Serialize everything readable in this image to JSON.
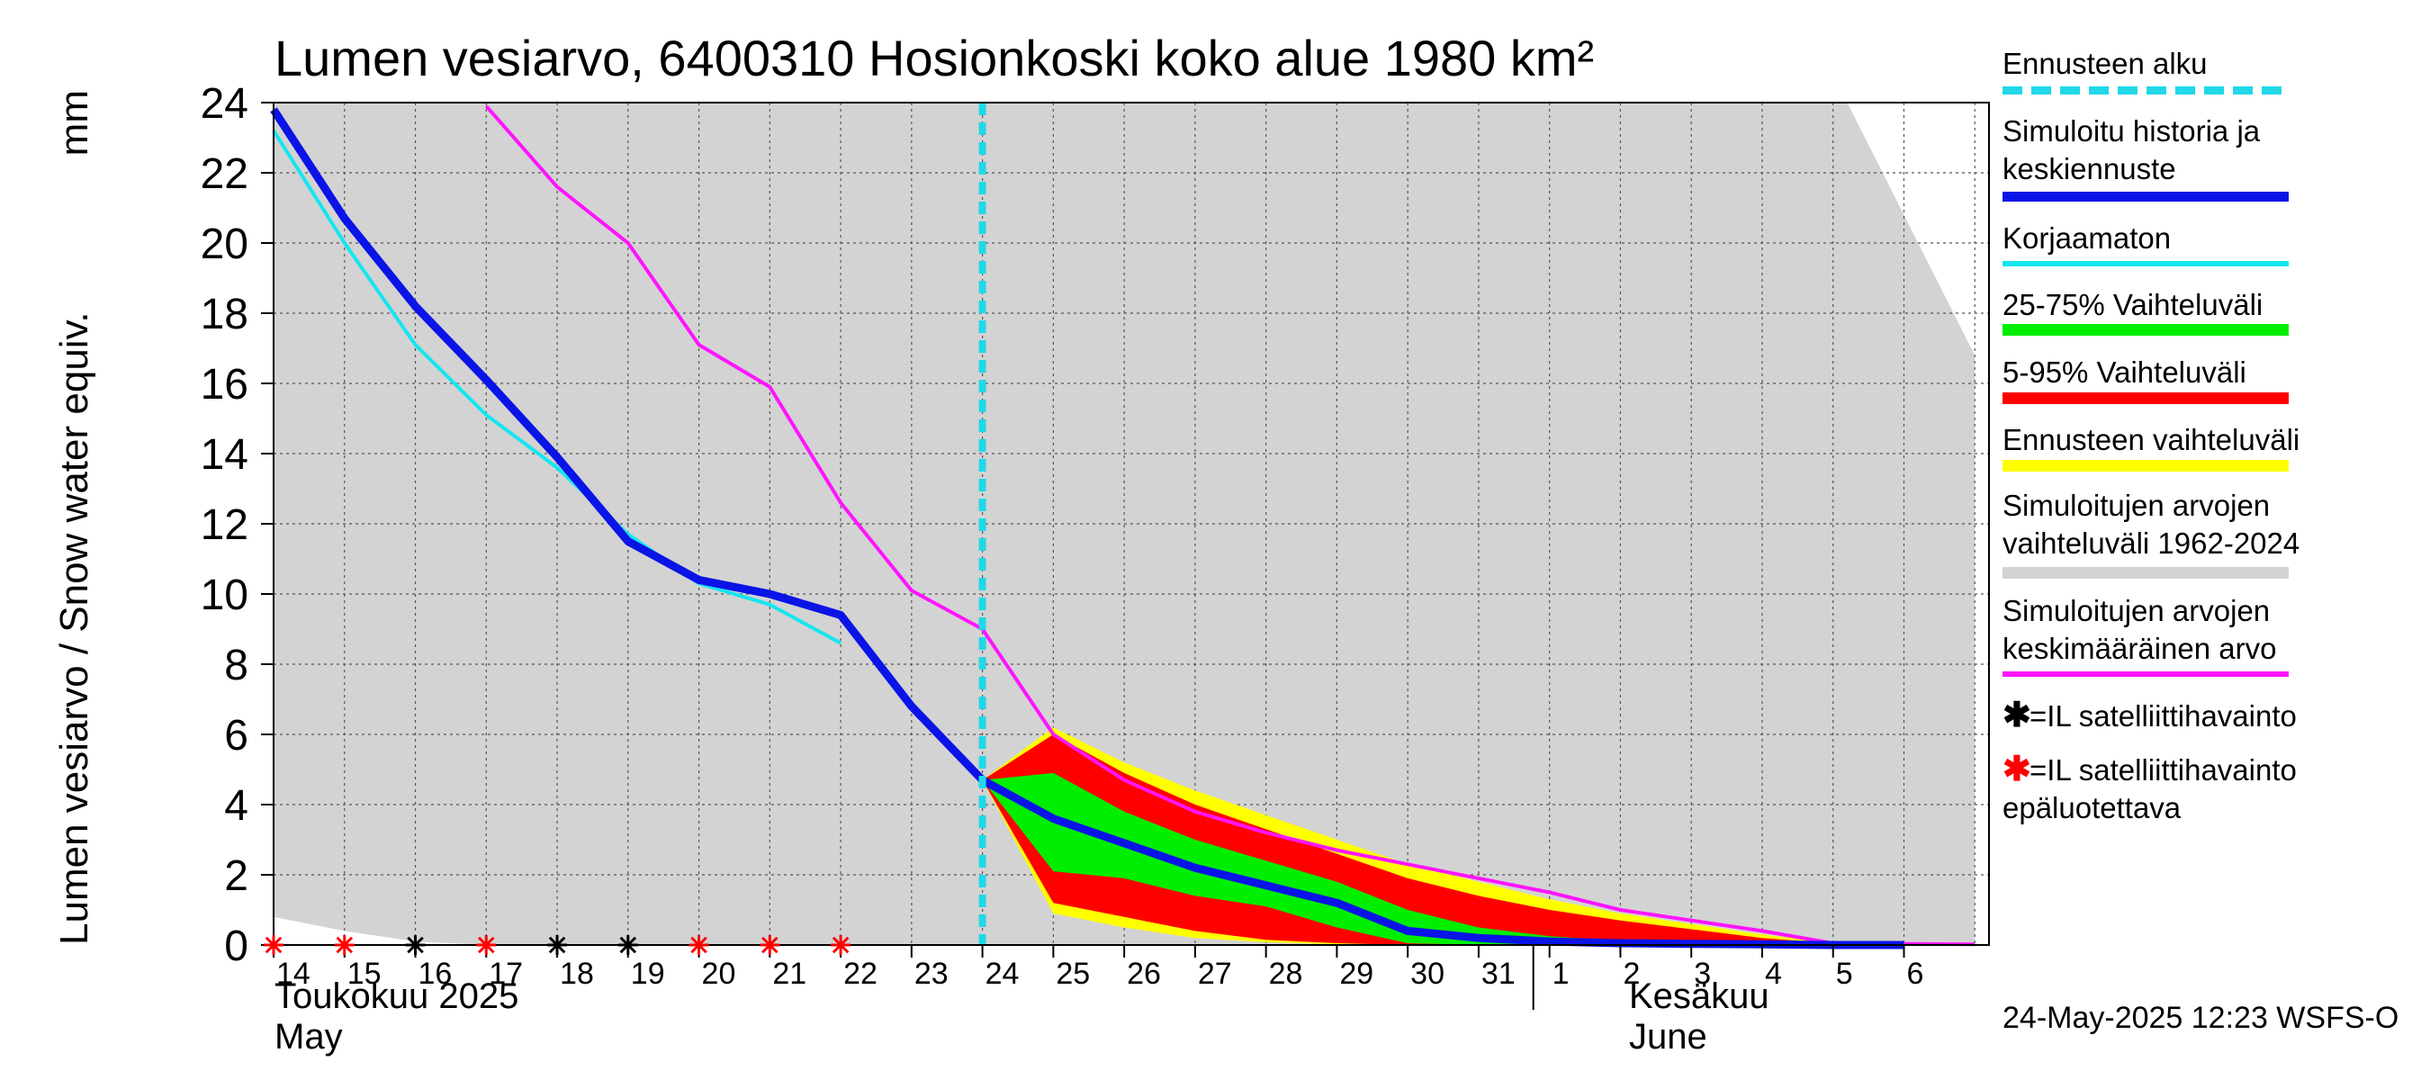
{
  "title": "Lumen vesiarvo, 6400310 Hosionkoski koko alue 1980 km²",
  "ylabel": "Lumen vesiarvo / Snow water equiv.",
  "yunit": "mm",
  "month_may_fi": "Toukokuu  2025",
  "month_may_en": "May",
  "month_june_fi": "Kesäkuu",
  "month_june_en": "June",
  "timestamp": "24-May-2025 12:23 WSFS-O",
  "legend": {
    "forecast_start": "Ennusteen alku",
    "simulated_1": "Simuloitu historia ja",
    "simulated_2": "keskiennuste",
    "uncorrected": "Korjaamaton",
    "range_25_75": "25-75% Vaihteluväli",
    "range_5_95": "5-95% Vaihteluväli",
    "forecast_range": "Ennusteen vaihteluväli",
    "hist_range_1": "Simuloitujen arvojen",
    "hist_range_2": "vaihteluväli 1962-2024",
    "hist_mean_1": "Simuloitujen arvojen",
    "hist_mean_2": "keskimääräinen arvo",
    "sat_1": "=IL satelliittihavainto",
    "sat_unrel_1": "=IL satelliittihavainto",
    "sat_unrel_2": "epäluotettava"
  },
  "colors": {
    "simulated": "#0a14e6",
    "uncorrected": "#14e6f0",
    "range_25_75": "#00ee00",
    "range_5_95": "#ff0000",
    "forecast_range": "#ffff00",
    "hist_range": "#d3d3d3",
    "hist_mean": "#ff14ff",
    "forecast_start": "#20d8e8",
    "sat_ok": "#000000",
    "sat_bad": "#ff0000"
  },
  "chart_data": {
    "type": "line",
    "x_ticks": [
      "14",
      "15",
      "16",
      "17",
      "18",
      "19",
      "20",
      "21",
      "22",
      "23",
      "24",
      "25",
      "26",
      "27",
      "28",
      "29",
      "30",
      "31",
      "1",
      "2",
      "3",
      "4",
      "5",
      "6"
    ],
    "y_ticks": [
      0,
      2,
      4,
      6,
      8,
      10,
      12,
      14,
      16,
      18,
      20,
      22,
      24
    ],
    "ylim": [
      0,
      24
    ],
    "forecast_start_x": 24,
    "series": [
      {
        "name": "Simuloitu historia ja keskiennuste",
        "x": [
          14,
          15,
          16,
          17,
          18,
          19,
          20,
          21,
          22,
          23,
          24,
          25,
          26,
          27,
          28,
          29,
          30,
          31,
          32,
          33,
          34,
          35,
          36,
          37
        ],
        "values": [
          23.8,
          20.7,
          18.2,
          16.1,
          13.9,
          11.5,
          10.4,
          10.0,
          9.4,
          6.8,
          4.7,
          3.6,
          2.9,
          2.2,
          1.7,
          1.2,
          0.4,
          0.2,
          0.1,
          0.05,
          0.03,
          0.02,
          0.0,
          0.0
        ]
      },
      {
        "name": "Korjaamaton",
        "x": [
          14,
          15,
          16,
          17,
          18,
          19,
          20,
          21,
          22
        ],
        "values": [
          23.2,
          20.0,
          17.1,
          15.1,
          13.6,
          11.7,
          10.3,
          9.7,
          8.6
        ]
      },
      {
        "name": "Simuloitujen arvojen keskimääräinen arvo",
        "x": [
          17,
          18,
          19,
          20,
          21,
          22,
          23,
          24,
          25,
          26,
          27,
          28,
          29,
          30,
          31,
          32,
          33,
          34,
          35,
          36,
          37,
          38
        ],
        "values": [
          23.9,
          21.6,
          20.0,
          17.1,
          15.9,
          12.6,
          10.1,
          9.0,
          6.0,
          4.7,
          3.8,
          3.2,
          2.7,
          2.3,
          1.9,
          1.5,
          1.0,
          0.7,
          0.4,
          0.05,
          0.03,
          0.02
        ]
      }
    ],
    "bands": {
      "x": [
        24,
        25,
        26,
        27,
        28,
        29,
        30,
        31,
        32,
        33,
        34,
        35,
        36,
        37,
        38
      ],
      "forecast_range": {
        "upper": [
          4.7,
          6.2,
          5.2,
          4.4,
          3.7,
          3.0,
          2.3,
          1.8,
          1.3,
          0.9,
          0.6,
          0.3,
          0.05,
          0.02,
          0.01
        ],
        "lower": [
          4.7,
          0.9,
          0.5,
          0.2,
          0.08,
          0.02,
          0.0,
          0.0,
          0.0,
          0.0,
          0.0,
          0.0,
          0.0,
          0.0,
          0.0
        ]
      },
      "range_5_95": {
        "upper": [
          4.7,
          6.0,
          4.9,
          4.0,
          3.3,
          2.6,
          1.9,
          1.4,
          1.0,
          0.7,
          0.45,
          0.2,
          0.04,
          0.02,
          0.01
        ],
        "lower": [
          4.7,
          1.2,
          0.8,
          0.4,
          0.15,
          0.05,
          0.0,
          0.0,
          0.0,
          0.0,
          0.0,
          0.0,
          0.0,
          0.0,
          0.0
        ]
      },
      "range_25_75": {
        "upper": [
          4.7,
          4.9,
          3.8,
          3.0,
          2.4,
          1.8,
          1.0,
          0.5,
          0.25,
          0.12,
          0.05,
          0.02,
          0.0,
          0.0,
          0.0
        ],
        "lower": [
          4.7,
          2.1,
          1.9,
          1.4,
          1.1,
          0.5,
          0.05,
          0.0,
          0.0,
          0.0,
          0.0,
          0.0,
          0.0,
          0.0,
          0.0
        ]
      }
    },
    "hist_range": {
      "x": [
        14,
        15,
        16,
        17,
        18,
        19,
        20,
        21,
        22,
        23,
        24,
        25,
        26,
        27,
        28,
        29,
        30,
        31,
        32,
        33,
        34,
        35,
        36,
        37,
        38
      ],
      "upper": [
        24,
        24,
        24,
        24,
        24,
        24,
        24,
        24,
        24,
        24,
        24,
        24,
        24,
        24,
        24,
        24,
        24,
        24,
        24,
        24,
        24,
        24,
        24,
        24,
        24
      ],
      "lower": [
        0.8,
        0.4,
        0.1,
        0.0,
        0.0,
        0.0,
        0.0,
        0.0,
        0.0,
        0.0,
        0.0,
        0.0,
        0.0,
        0.0,
        0.0,
        0.0,
        0.0,
        0.0,
        0.0,
        0.0,
        0.0,
        0.0,
        0.0,
        0.0,
        0.0
      ]
    },
    "hist_range_upper_tail": {
      "x": [
        36.2,
        38.0
      ],
      "values": [
        24,
        16
      ]
    },
    "satellite_ok": {
      "x": [
        16,
        18,
        19
      ],
      "values": [
        0,
        0,
        0
      ]
    },
    "satellite_unreliable": {
      "x": [
        14,
        15,
        17,
        20,
        21,
        22
      ],
      "values": [
        0,
        0,
        0,
        0,
        0,
        0
      ]
    }
  }
}
